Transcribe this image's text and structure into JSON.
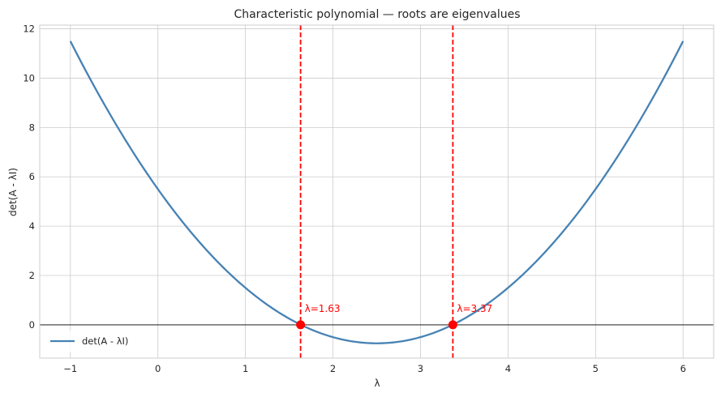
{
  "chart_data": {
    "type": "line",
    "title": "Characteristic polynomial — roots are eigenvalues",
    "xlabel": "λ",
    "ylabel": "det(A - λI)",
    "xlim": [
      -1.35,
      6.35
    ],
    "ylim": [
      -1.35,
      12.15
    ],
    "xticks": [
      -1,
      0,
      1,
      2,
      3,
      4,
      5,
      6
    ],
    "xtick_labels": [
      "−1",
      "0",
      "1",
      "2",
      "3",
      "4",
      "5",
      "6"
    ],
    "yticks": [
      0,
      2,
      4,
      6,
      8,
      10,
      12
    ],
    "ytick_labels": [
      "0",
      "2",
      "4",
      "6",
      "8",
      "10",
      "12"
    ],
    "grid": true,
    "legend": {
      "placement": "lower-left",
      "entries": [
        "det(A - λI)"
      ]
    },
    "series": [
      {
        "name": "det(A - λI)",
        "color": "#4682b4",
        "polynomial": {
          "a": 1,
          "b": -5,
          "c": 5.5
        },
        "x": [
          -1,
          -0.5,
          0,
          0.5,
          1,
          1.5,
          1.63,
          2,
          2.5,
          3,
          3.37,
          3.5,
          4,
          4.5,
          5,
          5.5,
          6
        ],
        "y": [
          11.5,
          8.25,
          5.5,
          3.25,
          1.5,
          0.25,
          0,
          -0.5,
          -0.75,
          -0.5,
          0,
          0.25,
          1.5,
          3.25,
          5.5,
          8.25,
          11.5
        ]
      }
    ],
    "eigenvalues": [
      {
        "x": 1.63,
        "label": "λ=1.63"
      },
      {
        "x": 3.37,
        "label": "λ=3.37"
      }
    ],
    "zero_line": true,
    "colors": {
      "curve": "#4682b4",
      "roots": "#ff0000",
      "grid": "#cccccc",
      "zero_line": "#000000"
    }
  }
}
